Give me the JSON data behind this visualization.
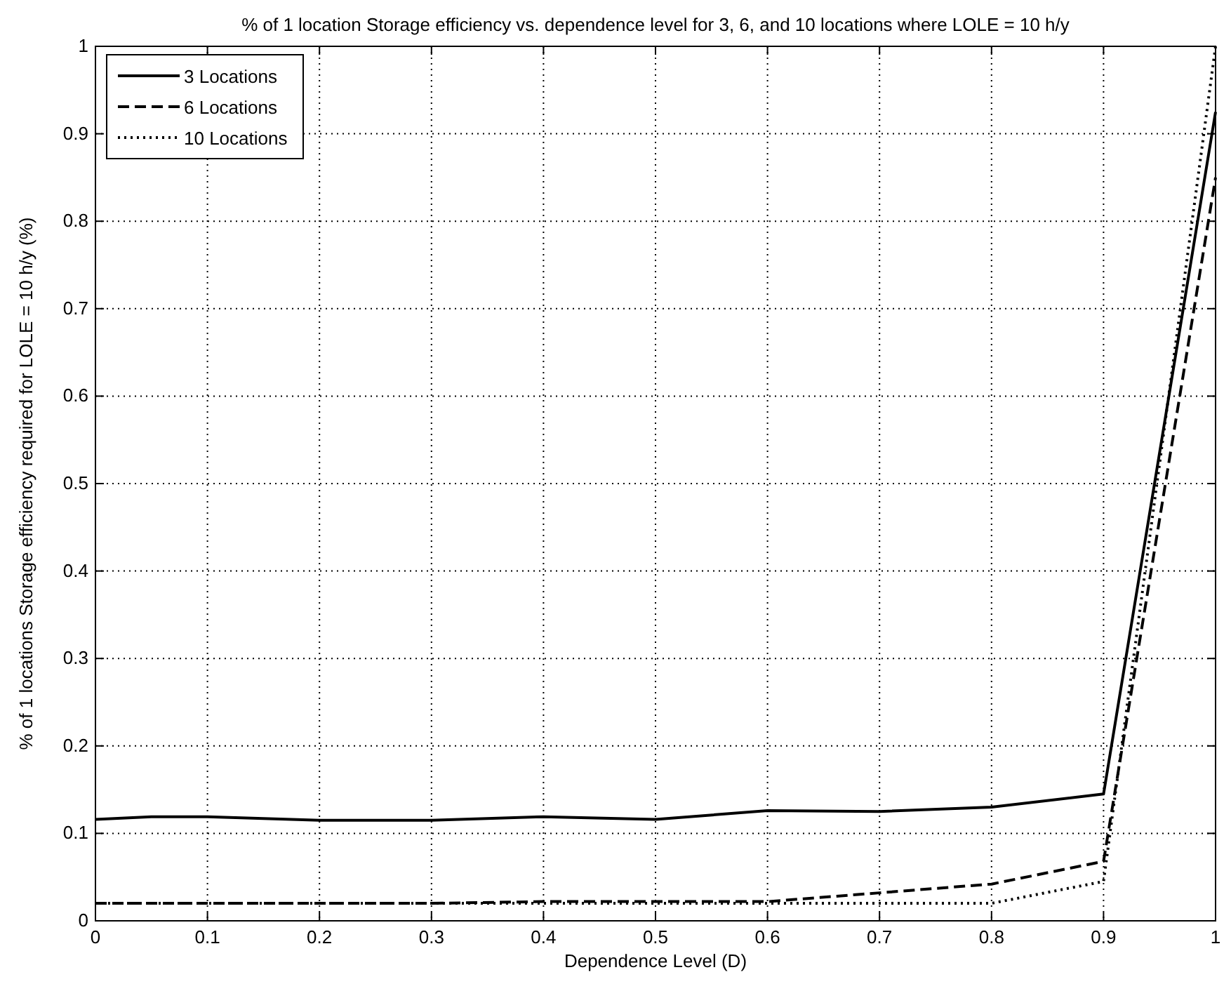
{
  "chart_data": {
    "type": "line",
    "title": "% of 1 location Storage efficiency vs. dependence level for 3, 6, and 10 locations where LOLE = 10 h/y",
    "xlabel": "Dependence Level (D)",
    "ylabel": "% of 1 locations Storage efficiency required for LOLE = 10 h/y (%)",
    "x": [
      0,
      0.05,
      0.1,
      0.15,
      0.2,
      0.3,
      0.4,
      0.5,
      0.6,
      0.7,
      0.8,
      0.9,
      1
    ],
    "series": [
      {
        "name": "3 Locations",
        "color": "#000000",
        "line_style": "solid",
        "values": [
          0.116,
          0.119,
          0.119,
          0.117,
          0.115,
          0.115,
          0.119,
          0.116,
          0.126,
          0.125,
          0.13,
          0.145,
          0.925
        ]
      },
      {
        "name": "6 Locations",
        "color": "#000000",
        "line_style": "dashed",
        "values": [
          0.02,
          0.02,
          0.02,
          0.02,
          0.02,
          0.02,
          0.022,
          0.022,
          0.022,
          0.032,
          0.042,
          0.068,
          0.85
        ]
      },
      {
        "name": "10 Locations",
        "color": "#000000",
        "line_style": "dotted",
        "values": [
          0.02,
          0.02,
          0.02,
          0.02,
          0.02,
          0.02,
          0.02,
          0.02,
          0.02,
          0.02,
          0.02,
          0.045,
          1
        ]
      }
    ],
    "xlim": [
      0,
      1
    ],
    "ylim": [
      0,
      1
    ],
    "xticks": [
      0,
      0.1,
      0.2,
      0.3,
      0.4,
      0.5,
      0.6,
      0.7,
      0.8,
      0.9,
      1
    ],
    "yticks": [
      0,
      0.1,
      0.2,
      0.3,
      0.4,
      0.5,
      0.6,
      0.7,
      0.8,
      0.9,
      1
    ],
    "grid": true,
    "legend": "top left"
  }
}
